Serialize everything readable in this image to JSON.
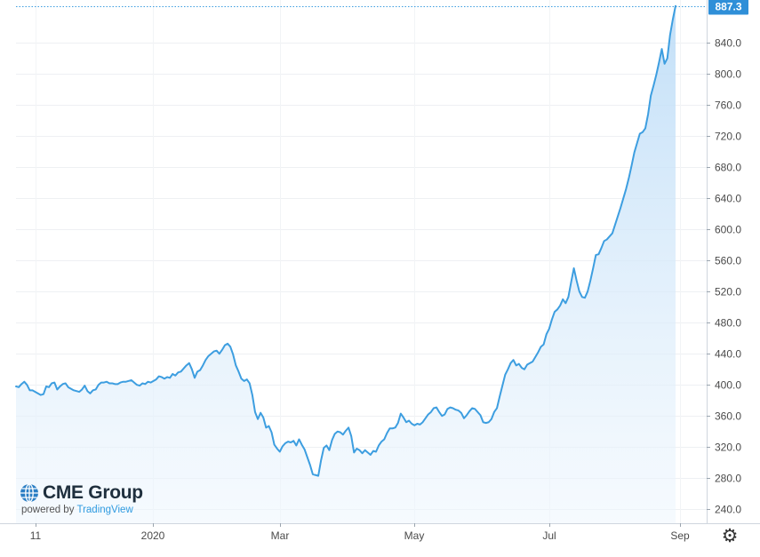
{
  "chart_data": {
    "type": "area",
    "title": "",
    "xlabel": "",
    "ylabel": "",
    "ylim": [
      222,
      895
    ],
    "yticks": [
      "240.0",
      "280.0",
      "320.0",
      "360.0",
      "400.0",
      "440.0",
      "480.0",
      "520.0",
      "560.0",
      "600.0",
      "640.0",
      "680.0",
      "720.0",
      "760.0",
      "800.0",
      "840.0"
    ],
    "xticks": [
      "11",
      "2020",
      "Mar",
      "May",
      "Jul",
      "Sep"
    ],
    "last_value_label": "887.3",
    "grid": true,
    "line_color": "#3d9ee0",
    "fill_color": "#dcecfb",
    "series": [
      {
        "values": [
          398,
          397,
          401,
          404,
          400,
          393,
          393,
          391,
          389,
          387,
          388,
          398,
          397,
          402,
          403,
          394,
          398,
          401,
          402,
          397,
          395,
          393,
          392,
          391,
          394,
          399,
          392,
          389,
          393,
          394,
          400,
          403,
          403,
          404,
          402,
          402,
          401,
          401,
          403,
          404,
          404,
          405,
          406,
          403,
          400,
          399,
          402,
          401,
          404,
          403,
          405,
          407,
          411,
          410,
          408,
          410,
          409,
          414,
          412,
          416,
          417,
          421,
          425,
          428,
          420,
          409,
          417,
          419,
          425,
          432,
          437,
          440,
          443,
          444,
          440,
          445,
          451,
          453,
          449,
          439,
          425,
          417,
          408,
          405,
          407,
          402,
          387,
          365,
          356,
          364,
          358,
          345,
          347,
          339,
          323,
          318,
          314,
          321,
          325,
          327,
          326,
          328,
          322,
          330,
          323,
          317,
          307,
          297,
          285,
          284,
          283,
          303,
          319,
          322,
          316,
          329,
          337,
          340,
          339,
          336,
          341,
          345,
          334,
          313,
          318,
          316,
          312,
          316,
          313,
          310,
          315,
          314,
          322,
          327,
          330,
          338,
          344,
          344,
          345,
          351,
          363,
          358,
          352,
          354,
          350,
          348,
          350,
          349,
          352,
          357,
          362,
          365,
          370,
          371,
          365,
          360,
          362,
          369,
          371,
          370,
          368,
          367,
          364,
          357,
          361,
          366,
          370,
          369,
          365,
          361,
          352,
          351,
          352,
          356,
          365,
          370,
          385,
          399,
          413,
          420,
          428,
          432,
          425,
          427,
          422,
          420,
          426,
          428,
          430,
          436,
          442,
          449,
          452,
          465,
          472,
          484,
          494,
          497,
          502,
          510,
          505,
          513,
          532,
          550,
          534,
          520,
          513,
          512,
          520,
          534,
          550,
          567,
          568,
          576,
          585,
          587,
          591,
          595,
          606,
          617,
          628,
          640,
          652,
          666,
          682,
          699,
          711,
          723,
          725,
          730,
          748,
          772,
          785,
          799,
          815,
          832,
          813,
          820,
          850,
          870,
          887.3
        ]
      }
    ]
  },
  "branding": {
    "logo_text": "CME Group",
    "powered_prefix": "powered by",
    "powered_brand": "TradingView"
  },
  "controls": {
    "settings_icon": "gear-icon"
  }
}
